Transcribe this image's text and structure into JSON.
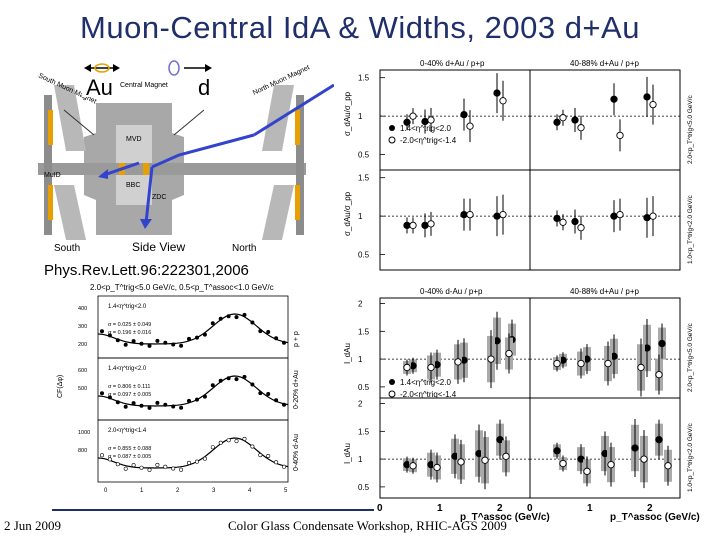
{
  "slide": {
    "title": "Muon-Central IdA & Widths, 2003 d+Au",
    "reference": "Phys.Rev.Lett.96:222301,2006",
    "date": "2 Jun 2009",
    "footer": "Color Glass Condensate Workshop, RHIC-AGS 2009"
  },
  "detector": {
    "au_label": "Au",
    "d_label": "d",
    "labels": {
      "south_muon_magnet": "South Muon Magnet",
      "central_magnet": "Central Magnet",
      "north_muon_magnet": "North Muon Magnet",
      "mvd": "MVD",
      "bbc": "BBC",
      "zdc": "ZDC",
      "muid": "MuID",
      "south": "South",
      "side_view": "Side View",
      "north": "North"
    },
    "colors": {
      "arrow": "#3344cc",
      "magnet": "#e8a000",
      "steel": "#a8a8a8"
    }
  },
  "correlation_plot": {
    "header": "2.0<p_T^trig<5.0 GeV/c, 0.5<p_T^assoc<1.0 GeV/c",
    "ylabel": "CF(Δφ)",
    "xlabel": "Δφ",
    "panels": [
      {
        "legend": "1.4<η^trig<2.0",
        "stats": [
          "σ = 0.025 ± 0.049",
          "σ = 0.196 ± 0.016"
        ],
        "side": "p + p",
        "yticks": [
          "400",
          "300",
          "200"
        ]
      },
      {
        "legend": "1.4<η^trig<2.0",
        "stats": [
          "σ = 0.806 ± 0.111",
          "σ = 0.097 ± 0.005"
        ],
        "side": "0-20% d+Au",
        "yticks": [
          "600",
          "500"
        ]
      },
      {
        "legend": "2.0<η^trig<1.4",
        "stats": [
          "σ = 0.855 ± 0.088",
          "σ = 0.087 ± 0.005"
        ],
        "side": "0-40% d-Au",
        "yticks": [
          "1000",
          "800"
        ]
      }
    ],
    "xticks": [
      "0",
      "1",
      "2",
      "3",
      "4",
      "5"
    ]
  },
  "chart_data": [
    {
      "type": "scatter",
      "title": "σ_dAu/σ_pp",
      "top_labels": [
        "0-40% d+Au / p+p",
        "40-88% d+Au / p+p"
      ],
      "row_ylabels": [
        "σ_dAu/σ_pp",
        "σ_dAu/σ_pp"
      ],
      "right_labels": [
        "2.0<p_T^trig<5.0 GeV/c",
        "1.0<p_T^trig<2.0 GeV/c"
      ],
      "legend": [
        "1.4<η^trig<2.0",
        "-2.0<η^trig<-1.4"
      ],
      "yticks": [
        "0.5",
        "1",
        "1.5"
      ],
      "ylim": [
        0.3,
        1.6
      ],
      "panels": [
        {
          "filled": [
            [
              0.45,
              0.92
            ],
            [
              0.75,
              0.93
            ],
            [
              1.4,
              1.02
            ],
            [
              1.95,
              1.3
            ]
          ],
          "open": [
            [
              0.55,
              1.0
            ],
            [
              0.85,
              0.95
            ],
            [
              1.5,
              0.87
            ],
            [
              2.05,
              1.2
            ]
          ]
        },
        {
          "filled": [
            [
              0.45,
              0.92
            ],
            [
              0.75,
              0.95
            ],
            [
              1.4,
              1.22
            ],
            [
              1.95,
              1.25
            ]
          ],
          "open": [
            [
              0.55,
              0.98
            ],
            [
              0.85,
              0.85
            ],
            [
              1.5,
              0.75
            ],
            [
              2.05,
              1.15
            ]
          ]
        },
        {
          "filled": [
            [
              0.45,
              0.88
            ],
            [
              0.75,
              0.88
            ],
            [
              1.4,
              1.02
            ],
            [
              1.95,
              1.0
            ]
          ],
          "open": [
            [
              0.55,
              0.88
            ],
            [
              0.85,
              0.9
            ],
            [
              1.5,
              1.02
            ],
            [
              2.05,
              1.02
            ]
          ]
        },
        {
          "filled": [
            [
              0.45,
              0.97
            ],
            [
              0.75,
              0.93
            ],
            [
              1.4,
              1.0
            ],
            [
              1.95,
              0.98
            ]
          ],
          "open": [
            [
              0.55,
              0.92
            ],
            [
              0.85,
              0.85
            ],
            [
              1.5,
              1.02
            ],
            [
              2.05,
              1.0
            ]
          ]
        }
      ]
    },
    {
      "type": "scatter",
      "title": "I_dAu",
      "top_labels": [
        "0-40% d-Au / p+p",
        "40-88% d+Au / p+p"
      ],
      "row_ylabels": [
        "I_dAu",
        "I_dAu"
      ],
      "right_labels": [
        "2.0<p_T^trig<5.0 GeV/c",
        "1.0<p_T^trig<2.0 GeV/c"
      ],
      "legend": [
        "1.4<η^trig<2.0",
        "-2.0<η^trig<-1.4"
      ],
      "xlabel": "p_T^assoc (GeV/c)",
      "xticks": [
        "0",
        "1",
        "2"
      ],
      "yticks": [
        "0.5",
        "1",
        "1.5",
        "2"
      ],
      "xlim": [
        0,
        2.5
      ],
      "ylim": [
        0.3,
        2.1
      ],
      "panels": [
        {
          "filled": [
            [
              0.55,
              0.88
            ],
            [
              0.95,
              0.9
            ],
            [
              1.4,
              0.98
            ],
            [
              1.95,
              1.33
            ],
            [
              2.2,
              1.35
            ]
          ],
          "open": [
            [
              0.45,
              0.85
            ],
            [
              0.85,
              0.85
            ],
            [
              1.3,
              0.95
            ],
            [
              1.85,
              1.0
            ],
            [
              2.15,
              1.1
            ]
          ]
        },
        {
          "filled": [
            [
              0.55,
              0.98
            ],
            [
              0.95,
              1.0
            ],
            [
              1.4,
              1.05
            ],
            [
              1.95,
              1.2
            ],
            [
              2.2,
              1.28
            ]
          ],
          "open": [
            [
              0.45,
              0.92
            ],
            [
              0.85,
              0.92
            ],
            [
              1.3,
              0.92
            ],
            [
              1.85,
              0.85
            ],
            [
              2.15,
              0.72
            ]
          ]
        },
        {
          "filled": [
            [
              0.45,
              0.9
            ],
            [
              0.85,
              0.9
            ],
            [
              1.25,
              1.05
            ],
            [
              1.65,
              1.1
            ],
            [
              2.0,
              1.35
            ]
          ],
          "open": [
            [
              0.55,
              0.88
            ],
            [
              0.95,
              0.85
            ],
            [
              1.35,
              0.95
            ],
            [
              1.75,
              0.98
            ],
            [
              2.1,
              1.05
            ]
          ]
        },
        {
          "filled": [
            [
              0.45,
              1.15
            ],
            [
              0.85,
              1.0
            ],
            [
              1.25,
              1.1
            ],
            [
              1.75,
              1.2
            ],
            [
              2.15,
              1.35
            ]
          ],
          "open": [
            [
              0.55,
              0.92
            ],
            [
              0.95,
              0.78
            ],
            [
              1.35,
              0.9
            ],
            [
              1.9,
              1.0
            ],
            [
              2.3,
              0.88
            ]
          ]
        }
      ]
    }
  ]
}
